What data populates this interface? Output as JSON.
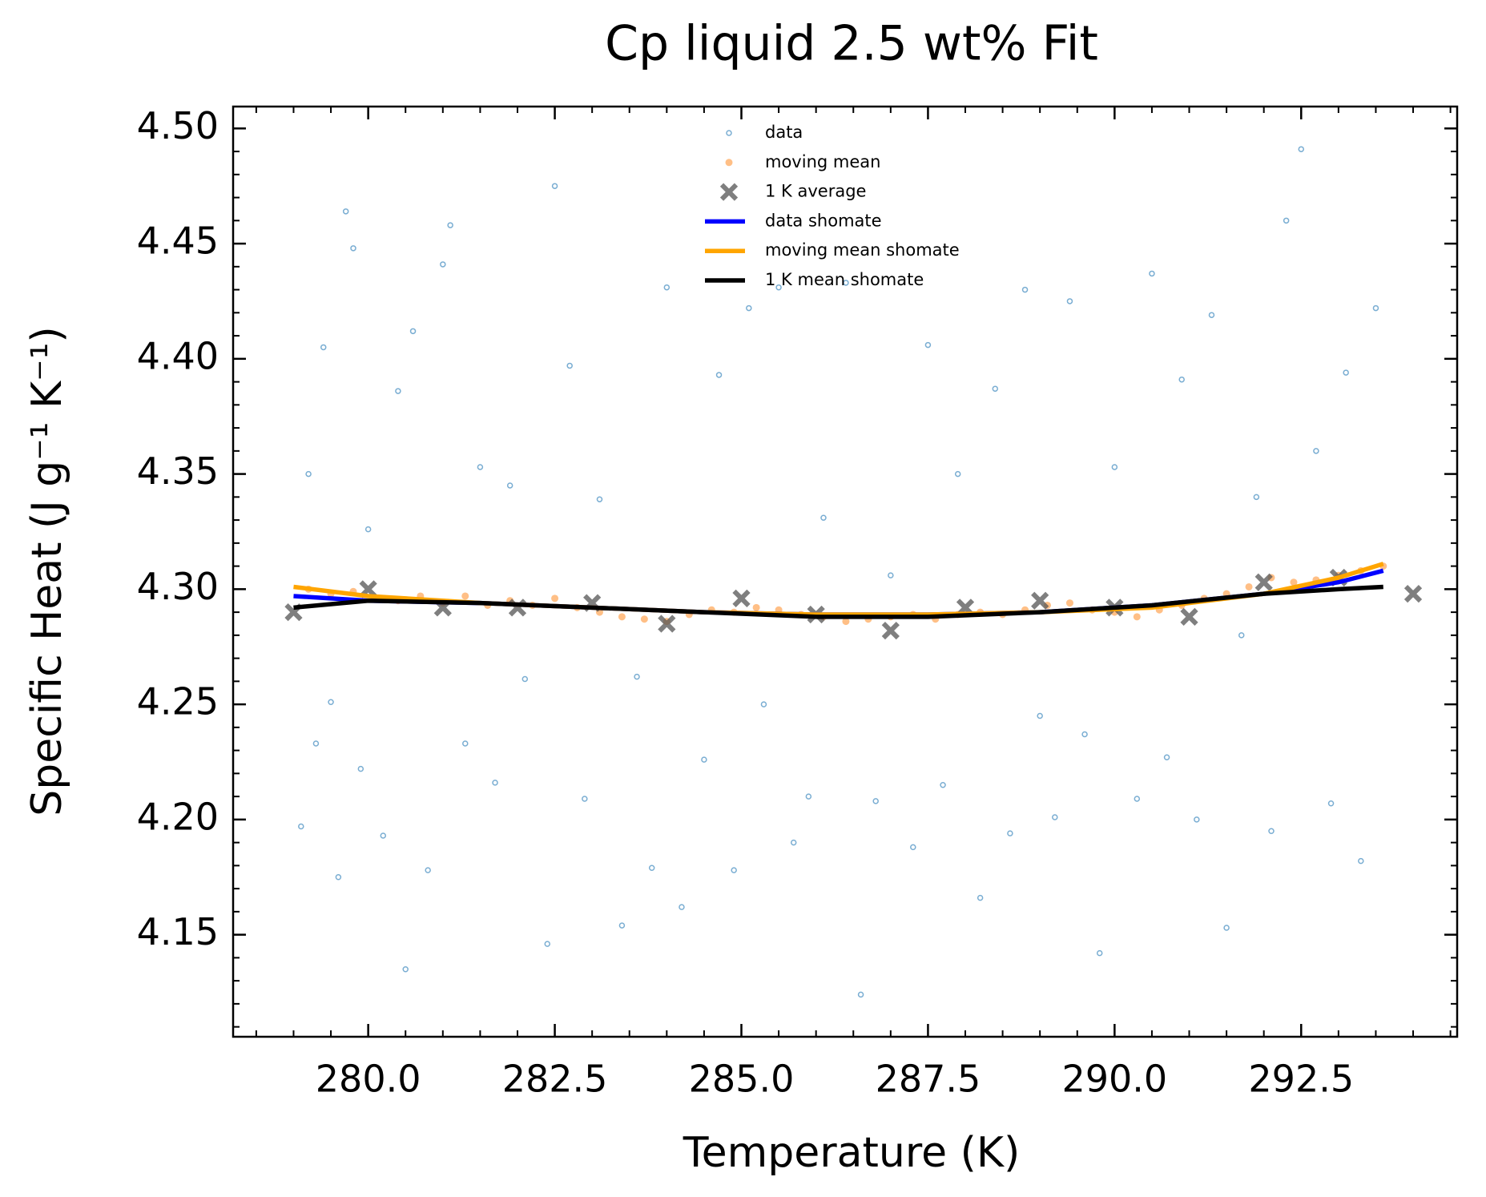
{
  "chart_data": {
    "type": "scatter",
    "title": "Cp liquid 2.5 wt% Fit",
    "x_label": "Temperature (K)",
    "y_label": "Specific Heat (J g⁻¹ K⁻¹)",
    "xlim": [
      278.19,
      294.59
    ],
    "ylim": [
      4.1057,
      4.5095
    ],
    "xticks": [
      {
        "value": 280,
        "label": "280.0"
      },
      {
        "value": 282.5,
        "label": "282.5"
      },
      {
        "value": 285,
        "label": "285.0"
      },
      {
        "value": 287.5,
        "label": "287.5"
      },
      {
        "value": 290,
        "label": "290.0"
      },
      {
        "value": 292.5,
        "label": "292.5"
      }
    ],
    "yticks": [
      4.15,
      {
        "value": 4.2,
        "label": "4.20"
      },
      4.25,
      {
        "value": 4.3,
        "label": "4.30"
      },
      4.35,
      {
        "value": 4.4,
        "label": "4.40"
      },
      4.45,
      {
        "value": 4.5,
        "label": "4.50"
      }
    ],
    "xminorticks": [
      278.5,
      279,
      279.5,
      280.5,
      281,
      281.5,
      282,
      283,
      283.5,
      284,
      284.5,
      285.5,
      286,
      286.5,
      287,
      288,
      288.5,
      289,
      289.5,
      290.5,
      291,
      291.5,
      292,
      293,
      293.5,
      294,
      294.5
    ],
    "yminorticks": [
      4.11,
      4.12,
      4.13,
      4.14,
      4.16,
      4.17,
      4.18,
      4.19,
      4.21,
      4.22,
      4.23,
      4.24,
      4.26,
      4.27,
      4.28,
      4.29,
      4.31,
      4.32,
      4.33,
      4.34,
      4.36,
      4.37,
      4.38,
      4.39,
      4.41,
      4.42,
      4.43,
      4.44,
      4.46,
      4.47,
      4.48,
      4.49
    ],
    "legend": "upper center",
    "series": [
      {
        "name": "data",
        "kind": "scatter",
        "marker": "hollow-circle",
        "color": "#1f77b4",
        "x": [
          279.1,
          279.2,
          279.3,
          279.4,
          279.5,
          279.6,
          279.7,
          279.8,
          279.9,
          280.0,
          280.2,
          280.4,
          280.5,
          280.6,
          280.8,
          281.0,
          281.1,
          281.3,
          281.5,
          281.7,
          281.9,
          282.1,
          282.4,
          282.5,
          282.7,
          282.9,
          283.1,
          283.4,
          283.6,
          283.8,
          284.0,
          284.2,
          284.5,
          284.7,
          284.9,
          285.1,
          285.3,
          285.5,
          285.7,
          285.9,
          286.1,
          286.4,
          286.6,
          286.8,
          287.0,
          287.3,
          287.5,
          287.7,
          287.9,
          288.2,
          288.4,
          288.6,
          288.8,
          289.0,
          289.2,
          289.4,
          289.6,
          289.8,
          290.0,
          290.3,
          290.5,
          290.7,
          290.9,
          291.1,
          291.3,
          291.5,
          291.7,
          291.9,
          292.1,
          292.3,
          292.5,
          292.7,
          292.9,
          293.1,
          293.3,
          293.5
        ],
        "y": [
          4.197,
          4.35,
          4.233,
          4.405,
          4.251,
          4.175,
          4.464,
          4.448,
          4.222,
          4.326,
          4.193,
          4.386,
          4.135,
          4.412,
          4.178,
          4.441,
          4.458,
          4.233,
          4.353,
          4.216,
          4.345,
          4.261,
          4.146,
          4.475,
          4.397,
          4.209,
          4.339,
          4.154,
          4.262,
          4.179,
          4.431,
          4.162,
          4.226,
          4.393,
          4.178,
          4.422,
          4.25,
          4.431,
          4.19,
          4.21,
          4.331,
          4.433,
          4.124,
          4.208,
          4.306,
          4.188,
          4.406,
          4.215,
          4.35,
          4.166,
          4.387,
          4.194,
          4.43,
          4.245,
          4.201,
          4.425,
          4.237,
          4.142,
          4.353,
          4.209,
          4.437,
          4.227,
          4.391,
          4.2,
          4.419,
          4.153,
          4.28,
          4.34,
          4.195,
          4.46,
          4.491,
          4.36,
          4.207,
          4.394,
          4.182,
          4.422
        ]
      },
      {
        "name": "moving mean",
        "kind": "scatter",
        "marker": "dot",
        "color": "#ff7f0e",
        "x": [
          279.2,
          279.5,
          279.8,
          280.1,
          280.4,
          280.7,
          281.0,
          281.3,
          281.6,
          281.9,
          282.2,
          282.5,
          282.8,
          283.1,
          283.4,
          283.7,
          284.0,
          284.3,
          284.6,
          284.9,
          285.2,
          285.5,
          285.8,
          286.1,
          286.4,
          286.7,
          287.0,
          287.3,
          287.6,
          287.9,
          288.2,
          288.5,
          288.8,
          289.1,
          289.4,
          289.7,
          290.0,
          290.3,
          290.6,
          290.9,
          291.2,
          291.5,
          291.8,
          292.1,
          292.4,
          292.7,
          293.0,
          293.3,
          293.6
        ],
        "y": [
          4.3,
          4.298,
          4.299,
          4.296,
          4.295,
          4.297,
          4.294,
          4.297,
          4.293,
          4.295,
          4.293,
          4.296,
          4.292,
          4.29,
          4.288,
          4.287,
          4.286,
          4.289,
          4.291,
          4.29,
          4.292,
          4.291,
          4.289,
          4.288,
          4.286,
          4.287,
          4.288,
          4.289,
          4.287,
          4.289,
          4.29,
          4.289,
          4.291,
          4.293,
          4.294,
          4.291,
          4.29,
          4.288,
          4.291,
          4.293,
          4.296,
          4.298,
          4.301,
          4.305,
          4.303,
          4.304,
          4.306,
          4.308,
          4.31
        ]
      },
      {
        "name": "1 K average",
        "kind": "scatter",
        "marker": "cross",
        "color": "#555555",
        "x": [
          279,
          280,
          281,
          282,
          283,
          284,
          285,
          286,
          287,
          288,
          289,
          290,
          291,
          292,
          293,
          294
        ],
        "y": [
          4.29,
          4.3,
          4.292,
          4.292,
          4.294,
          4.285,
          4.296,
          4.289,
          4.282,
          4.292,
          4.295,
          4.292,
          4.288,
          4.303,
          4.305,
          4.298
        ]
      },
      {
        "name": "data shomate",
        "kind": "line",
        "color": "#0000ff",
        "x": [
          279,
          280,
          281.5,
          283,
          284.5,
          286,
          287.5,
          289,
          290.5,
          292,
          293,
          293.6
        ],
        "y": [
          4.297,
          4.295,
          4.294,
          4.292,
          4.29,
          4.289,
          4.289,
          4.29,
          4.293,
          4.298,
          4.303,
          4.308
        ]
      },
      {
        "name": "moving mean shomate",
        "kind": "line",
        "color": "#ffa500",
        "x": [
          279,
          280,
          281.5,
          283,
          284.5,
          286,
          287.5,
          289,
          290.5,
          292,
          293,
          293.6
        ],
        "y": [
          4.301,
          4.297,
          4.294,
          4.292,
          4.29,
          4.289,
          4.289,
          4.29,
          4.292,
          4.298,
          4.305,
          4.311
        ]
      },
      {
        "name": "1 K mean shomate",
        "kind": "line",
        "color": "#000000",
        "x": [
          279,
          280,
          281.5,
          283,
          284.5,
          286,
          287.5,
          289,
          290.5,
          292,
          293,
          293.6
        ],
        "y": [
          4.292,
          4.295,
          4.294,
          4.292,
          4.29,
          4.288,
          4.288,
          4.29,
          4.293,
          4.298,
          4.3,
          4.301
        ]
      }
    ]
  }
}
